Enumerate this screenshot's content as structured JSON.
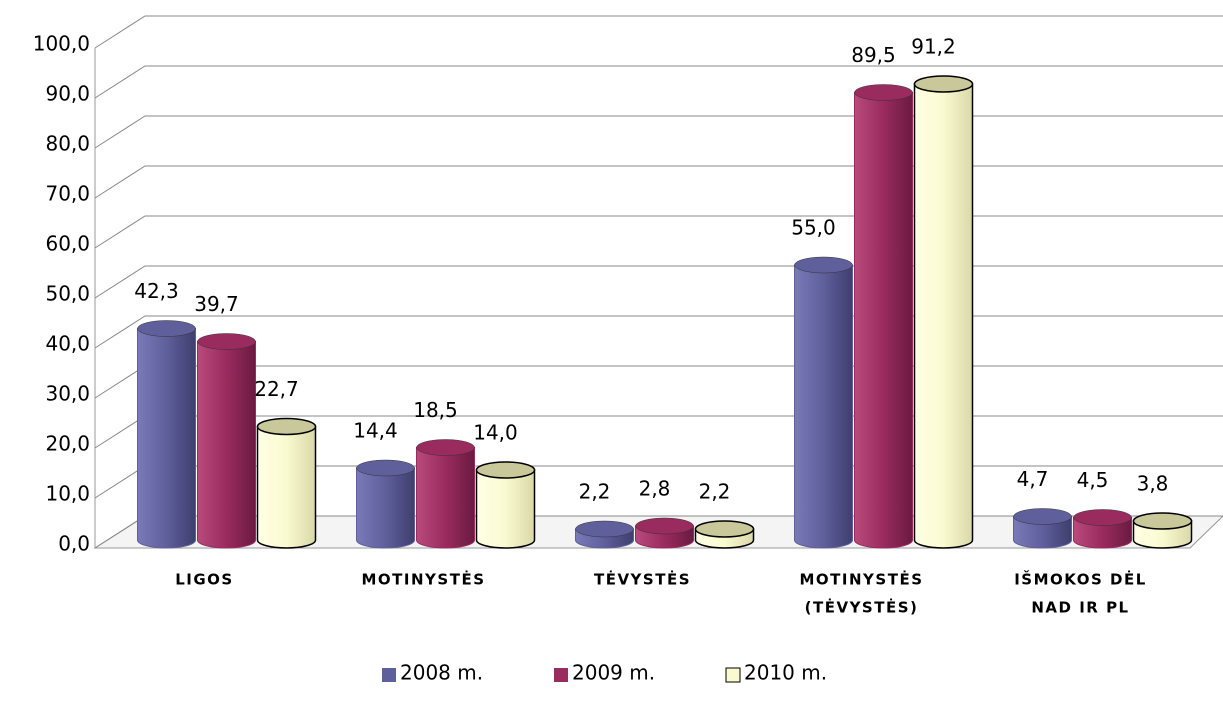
{
  "chart_data": {
    "type": "bar",
    "categories": [
      "LIGOS",
      "MOTINYSTĖS",
      "TĖVYSTĖS",
      [
        "MOTINYSTĖS",
        "(TĖVYSTĖS)"
      ],
      [
        "IŠMOKOS DĖL",
        "NAD IR PL"
      ]
    ],
    "series": [
      {
        "name": "2008 m.",
        "color": "#5f5f9c",
        "values": [
          42.3,
          14.4,
          2.2,
          55.0,
          4.7
        ],
        "value_labels": [
          "42,3",
          "14,4",
          "2,2",
          "55,0",
          "4,7"
        ]
      },
      {
        "name": "2009 m.",
        "color": "#9a2b5f",
        "values": [
          39.7,
          18.5,
          2.8,
          89.5,
          4.5
        ],
        "value_labels": [
          "39,7",
          "18,5",
          "2,8",
          "89,5",
          "4,5"
        ]
      },
      {
        "name": "2010 m.",
        "color": "#fafad0",
        "values": [
          22.7,
          14.0,
          2.2,
          91.2,
          3.8
        ],
        "value_labels": [
          "22,7",
          "14,0",
          "2,2",
          "91,2",
          "3,8"
        ]
      }
    ],
    "ylim": [
      0,
      100
    ],
    "yticks": [
      {
        "value": 0,
        "label": "0,0"
      },
      {
        "value": 10,
        "label": "10,0"
      },
      {
        "value": 20,
        "label": "20,0"
      },
      {
        "value": 30,
        "label": "30,0"
      },
      {
        "value": 40,
        "label": "40,0"
      },
      {
        "value": 50,
        "label": "50,0"
      },
      {
        "value": 60,
        "label": "60,0"
      },
      {
        "value": 70,
        "label": "70,0"
      },
      {
        "value": 80,
        "label": "80,0"
      },
      {
        "value": 90,
        "label": "90,0"
      },
      {
        "value": 100,
        "label": "100,0"
      }
    ],
    "grid": true,
    "legend": "bottom"
  }
}
